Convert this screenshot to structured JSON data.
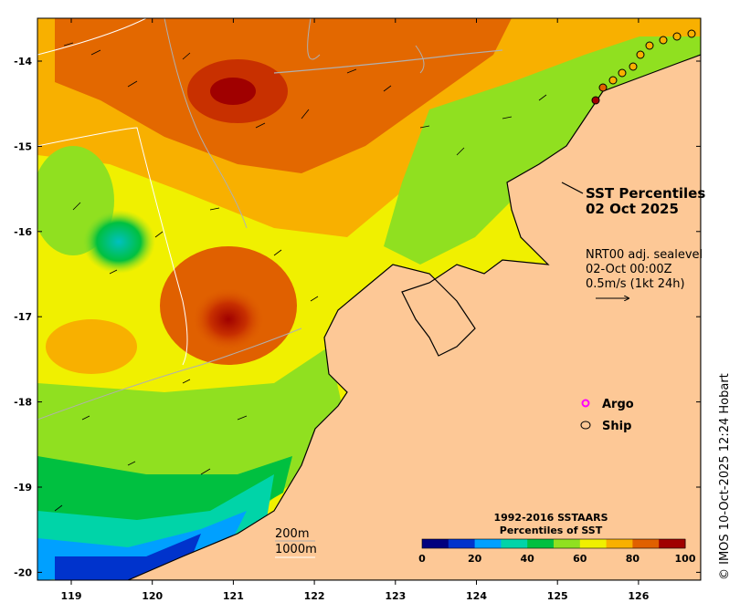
{
  "map": {
    "title_line1": "SST Percentiles",
    "title_line2": "02 Oct 2025",
    "current_line1": "NRT00 adj. sealevel",
    "current_line2": "02-Oct 00:00Z",
    "current_line3": "0.5m/s (1kt 24h)",
    "legend_argo": "Argo",
    "legend_ship": "Ship",
    "contour_200": "200m",
    "contour_1000": "1000m",
    "credit": "© IMOS 10-Oct-2025 12:24 Hobart",
    "colorbar_title1": "1992-2016 SSTAARS",
    "colorbar_title2": "Percentiles of SST",
    "colorbar_ticks": [
      "0",
      "20",
      "40",
      "60",
      "80",
      "100"
    ],
    "colorbar_colors": [
      "#00007f",
      "#0033cc",
      "#00a0ff",
      "#00d4a8",
      "#00c040",
      "#90e020",
      "#f0f000",
      "#f8b000",
      "#e06000",
      "#a00000"
    ],
    "lon_ticks": [
      "119",
      "120",
      "121",
      "122",
      "123",
      "124",
      "125",
      "126"
    ],
    "lat_ticks": [
      "-14",
      "-15",
      "-16",
      "-17",
      "-18",
      "-19",
      "-20"
    ],
    "land_color": "#fdc896"
  }
}
